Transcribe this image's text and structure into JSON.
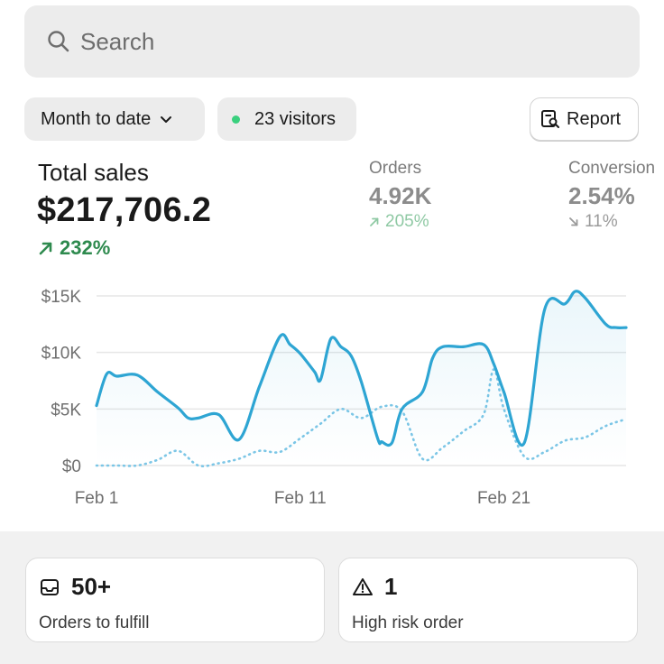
{
  "search": {
    "placeholder": "Search",
    "icon": "search-icon"
  },
  "filters": {
    "date_range": "Month to date",
    "visitors": "23 visitors",
    "visitors_dot_color": "#3ad07e",
    "report": "Report"
  },
  "total_sales": {
    "label": "Total sales",
    "value": "$217,706.2",
    "change": "232%",
    "change_color": "#2e8a4e"
  },
  "orders": {
    "label": "Orders",
    "value": "4.92K",
    "change": "205%"
  },
  "conversion": {
    "label": "Conversion",
    "value": "2.54%",
    "change": "11%"
  },
  "chart_data": {
    "type": "line",
    "title": "",
    "xlabel": "",
    "ylabel": "",
    "ylim": [
      0,
      15000
    ],
    "yticks": [
      "$0",
      "$5K",
      "$10K",
      "$15K"
    ],
    "ytick_values": [
      0,
      5000,
      10000,
      15000
    ],
    "xticks": [
      "Feb 1",
      "Feb 11",
      "Feb 21"
    ],
    "xtick_values": [
      1,
      11,
      21
    ],
    "grid": true,
    "series": [
      {
        "style": "solid",
        "color": "#2ea5d3",
        "x": [
          1,
          1.5,
          2,
          3,
          4,
          5,
          5.5,
          6,
          7,
          8,
          9,
          10,
          10.5,
          11,
          11.7,
          12,
          12.5,
          13,
          13.5,
          14,
          14.8,
          15,
          15.5,
          16,
          17,
          17.5,
          18,
          19,
          20,
          20.5,
          21,
          22,
          23,
          24,
          24.5,
          25,
          26,
          26.5,
          27
        ],
        "values": [
          5300,
          8100,
          7900,
          8000,
          6500,
          5100,
          4200,
          4200,
          4500,
          2300,
          7000,
          11400,
          10700,
          9900,
          8300,
          7600,
          11200,
          10500,
          9700,
          7400,
          2400,
          2100,
          2000,
          5000,
          6500,
          9500,
          10500,
          10500,
          10700,
          9000,
          6500,
          2000,
          13800,
          14300,
          15400,
          14800,
          12500,
          12200,
          12200
        ]
      },
      {
        "style": "dotted",
        "color": "#7cc6e6",
        "x": [
          1,
          2,
          3,
          4,
          5,
          6,
          7,
          8,
          9,
          10,
          11,
          12,
          13,
          14,
          15,
          16,
          17,
          18,
          19,
          20,
          20.5,
          21,
          22,
          23,
          24,
          25,
          26,
          27
        ],
        "values": [
          0,
          0,
          0,
          500,
          1300,
          0,
          200,
          600,
          1300,
          1200,
          2400,
          3700,
          5000,
          4200,
          5200,
          4800,
          600,
          1600,
          3000,
          4500,
          8500,
          5000,
          800,
          1200,
          2200,
          2500,
          3500,
          4100
        ]
      }
    ]
  },
  "cards": [
    {
      "icon": "inbox-icon",
      "value": "50+",
      "label": "Orders to fulfill"
    },
    {
      "icon": "warning-icon",
      "value": "1",
      "label": "High risk order"
    }
  ]
}
